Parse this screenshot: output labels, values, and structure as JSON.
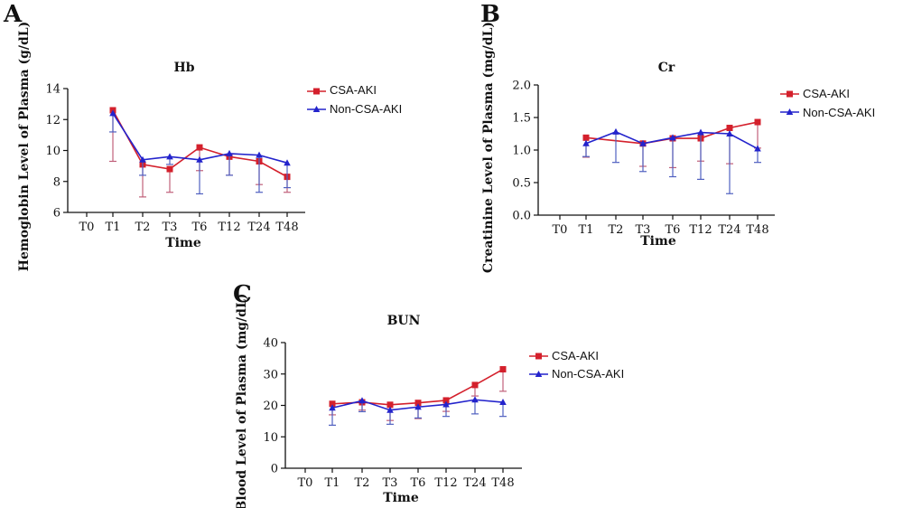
{
  "colors": {
    "csa_aki": "#d4202c",
    "non_csa_aki": "#2323cc",
    "csa_aki_error": "#c0607a",
    "non_csa_aki_error": "#5060c0",
    "axis": "#111111"
  },
  "chart_data": [
    {
      "type": "line",
      "panel_letter": "A",
      "title": "Hb",
      "xlabel": "Time",
      "ylabel": "Hemoglobin Level of Plasma (g/dL)",
      "categories": [
        "T0",
        "T1",
        "T2",
        "T3",
        "T6",
        "T12",
        "T24",
        "T48"
      ],
      "ylim": [
        6,
        14
      ],
      "yticks": [
        "6",
        "8",
        "10",
        "12",
        "14"
      ],
      "grid": false,
      "legend_position": "right",
      "series": [
        {
          "name": "CSA-AKI",
          "marker": "square",
          "color": "csa_aki",
          "values": [
            null,
            12.6,
            9.1,
            8.8,
            10.2,
            9.6,
            9.3,
            8.3
          ],
          "error_minus": [
            null,
            3.3,
            2.1,
            1.5,
            1.5,
            1.2,
            1.5,
            1.0
          ]
        },
        {
          "name": "Non-CSA-AKI",
          "marker": "triangle",
          "color": "non_csa_aki",
          "values": [
            null,
            12.4,
            9.4,
            9.6,
            9.4,
            9.8,
            9.7,
            9.2
          ],
          "error_minus": [
            null,
            1.2,
            1.0,
            0.5,
            2.2,
            1.4,
            2.4,
            1.6
          ]
        }
      ]
    },
    {
      "type": "line",
      "panel_letter": "B",
      "title": "Cr",
      "xlabel": "Time",
      "ylabel": "Creatinine Level of Plasma (mg/dL)",
      "categories": [
        "T0",
        "T1",
        "T2",
        "T3",
        "T6",
        "T12",
        "T24",
        "T48"
      ],
      "ylim": [
        0,
        2
      ],
      "yticks": [
        "0.0",
        "0.5",
        "1.0",
        "1.5",
        "2.0"
      ],
      "grid": false,
      "legend_position": "right",
      "series": [
        {
          "name": "CSA-AKI",
          "marker": "square",
          "color": "csa_aki",
          "values": [
            null,
            1.19,
            null,
            1.1,
            1.18,
            1.18,
            1.34,
            1.43
          ],
          "error_minus": [
            null,
            0.3,
            null,
            0.35,
            0.45,
            0.35,
            0.55,
            0.4
          ]
        },
        {
          "name": "Non-CSA-AKI",
          "marker": "triangle",
          "color": "non_csa_aki",
          "values": [
            null,
            1.1,
            1.28,
            1.1,
            1.19,
            1.27,
            1.25,
            1.02
          ],
          "error_minus": [
            null,
            0.2,
            0.47,
            0.43,
            0.6,
            0.72,
            0.92,
            0.21
          ]
        }
      ]
    },
    {
      "type": "line",
      "panel_letter": "C",
      "title": "BUN",
      "xlabel": "Time",
      "ylabel": "Blood Level of Plasma (mg/dL)",
      "categories": [
        "T0",
        "T1",
        "T2",
        "T3",
        "T6",
        "T12",
        "T24",
        "T48"
      ],
      "ylim": [
        0,
        40
      ],
      "yticks": [
        "0",
        "10",
        "20",
        "30",
        "40"
      ],
      "grid": false,
      "legend_position": "right",
      "series": [
        {
          "name": "CSA-AKI",
          "marker": "square",
          "color": "csa_aki",
          "values": [
            null,
            20.5,
            21.0,
            20.2,
            20.8,
            21.6,
            26.5,
            31.5
          ],
          "error_minus": [
            null,
            3.5,
            2.5,
            5.0,
            5.0,
            3.5,
            3.5,
            7.0
          ]
        },
        {
          "name": "Non-CSA-AKI",
          "marker": "triangle",
          "color": "non_csa_aki",
          "values": [
            null,
            19.2,
            21.5,
            18.5,
            19.5,
            20.3,
            21.8,
            21.0
          ],
          "error_minus": [
            null,
            5.5,
            3.5,
            4.5,
            3.5,
            3.8,
            4.5,
            4.5
          ]
        }
      ]
    }
  ]
}
